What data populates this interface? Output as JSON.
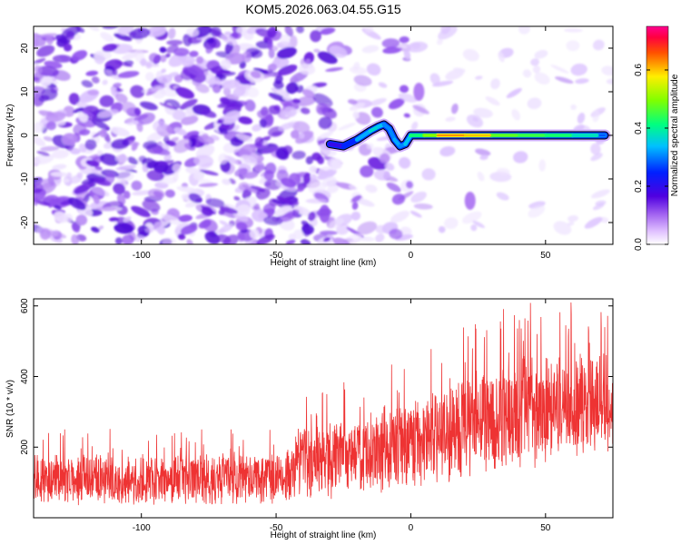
{
  "chart_data": [
    {
      "type": "heatmap",
      "title": "KOM5.2026.063.04.55.G15",
      "xlabel": "Height of straight line (km)",
      "ylabel": "Frequency (Hz)",
      "xlim": [
        -140,
        75
      ],
      "ylim": [
        -25,
        25
      ],
      "xticks": [
        -100,
        -50,
        0,
        50
      ],
      "xtick_labels": [
        "-100",
        "-50",
        "0",
        "50"
      ],
      "yticks": [
        -20,
        -10,
        0,
        10,
        20
      ],
      "ytick_labels": [
        "-20",
        "-10",
        "0",
        "10",
        "20"
      ],
      "colorbar": {
        "label": "Normalized spectral amplitude",
        "range": [
          0,
          0.75
        ],
        "ticks": [
          0.0,
          0.2,
          0.4,
          0.6
        ],
        "tick_labels": [
          "0.0",
          "0.2",
          "0.4",
          "0.6"
        ]
      },
      "features": {
        "noise_region_x": [
          -140,
          -25
        ],
        "noise_level": 0.15,
        "ridge": {
          "description": "signal ridge from left to right",
          "x": [
            -30,
            -25,
            -20,
            -15,
            -12,
            -10,
            -8,
            -6,
            -4,
            -2,
            0,
            5,
            10,
            20,
            30,
            40,
            50,
            60,
            70,
            72
          ],
          "y": [
            -2,
            -2.5,
            -1,
            1,
            2,
            2.5,
            1.5,
            -1,
            -2.5,
            -2,
            0,
            0,
            0,
            0,
            0,
            0,
            0,
            0,
            0,
            0
          ],
          "amplitude": [
            0.1,
            0.15,
            0.25,
            0.35,
            0.35,
            0.3,
            0.25,
            0.3,
            0.3,
            0.25,
            0.4,
            0.45,
            0.55,
            0.7,
            0.5,
            0.45,
            0.45,
            0.4,
            0.35,
            0.2
          ]
        },
        "isolated_patches": [
          {
            "x": 3,
            "y": 10,
            "amplitude": 0.1
          },
          {
            "x": 22,
            "y": -15,
            "amplitude": 0.1
          },
          {
            "x": -32,
            "y": -18,
            "amplitude": 0.12
          }
        ]
      }
    },
    {
      "type": "line",
      "xlabel": "Height of straight line (km)",
      "ylabel": "SNR (10 * v/v)",
      "xlim": [
        -140,
        75
      ],
      "ylim": [
        0,
        620
      ],
      "xticks": [
        -100,
        -50,
        0,
        50
      ],
      "xtick_labels": [
        "-100",
        "-50",
        "0",
        "50"
      ],
      "yticks": [
        200,
        400,
        600
      ],
      "ytick_labels": [
        "200",
        "400",
        "600"
      ],
      "series": [
        {
          "name": "SNR",
          "color": "#ee3333",
          "envelope_x": [
            -140,
            -120,
            -100,
            -80,
            -60,
            -45,
            -43,
            -30,
            -20,
            -10,
            0,
            10,
            20,
            30,
            40,
            50,
            60,
            70,
            75
          ],
          "envelope_mean": [
            110,
            110,
            105,
            110,
            110,
            115,
            160,
            165,
            175,
            190,
            210,
            235,
            260,
            280,
            300,
            310,
            315,
            320,
            320
          ],
          "envelope_amp": [
            80,
            80,
            80,
            80,
            80,
            85,
            120,
            125,
            130,
            135,
            140,
            150,
            165,
            175,
            180,
            175,
            165,
            160,
            160
          ]
        }
      ]
    }
  ]
}
